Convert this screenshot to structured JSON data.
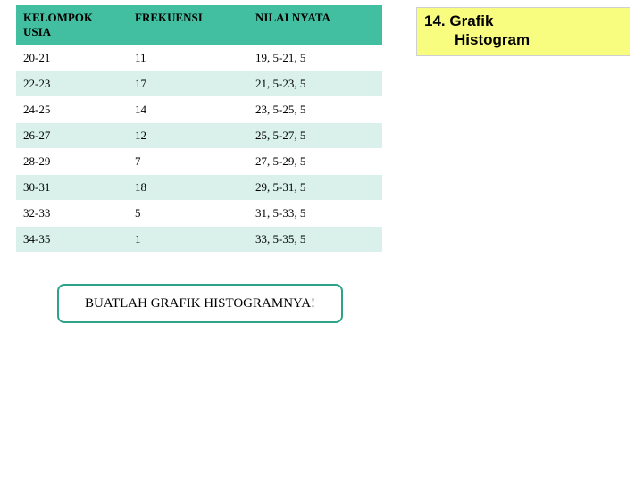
{
  "table": {
    "header_bg": "#41bfa0",
    "row_even_bg": "#ffffff",
    "row_odd_bg": "#d9f1ea",
    "columns": [
      "KELOMPOK USIA",
      "FREKUENSI",
      "NILAI NYATA"
    ],
    "rows": [
      [
        "20-21",
        "11",
        "19, 5-21, 5"
      ],
      [
        "22-23",
        "17",
        "21, 5-23, 5"
      ],
      [
        "24-25",
        "14",
        "23, 5-25, 5"
      ],
      [
        "26-27",
        "12",
        "25, 5-27, 5"
      ],
      [
        "28-29",
        "7",
        "27, 5-29, 5"
      ],
      [
        "30-31",
        "18",
        "29, 5-31, 5"
      ],
      [
        "32-33",
        "5",
        "31, 5-33, 5"
      ],
      [
        "34-35",
        "1",
        "33, 5-35, 5"
      ]
    ]
  },
  "callout": {
    "text": "BUATLAH GRAFIK HISTOGRAMNYA!",
    "border_color": "#2fa38a"
  },
  "title": {
    "line1": "14. Grafik",
    "line2": "Histogram",
    "bg": "#f8fd7f"
  }
}
